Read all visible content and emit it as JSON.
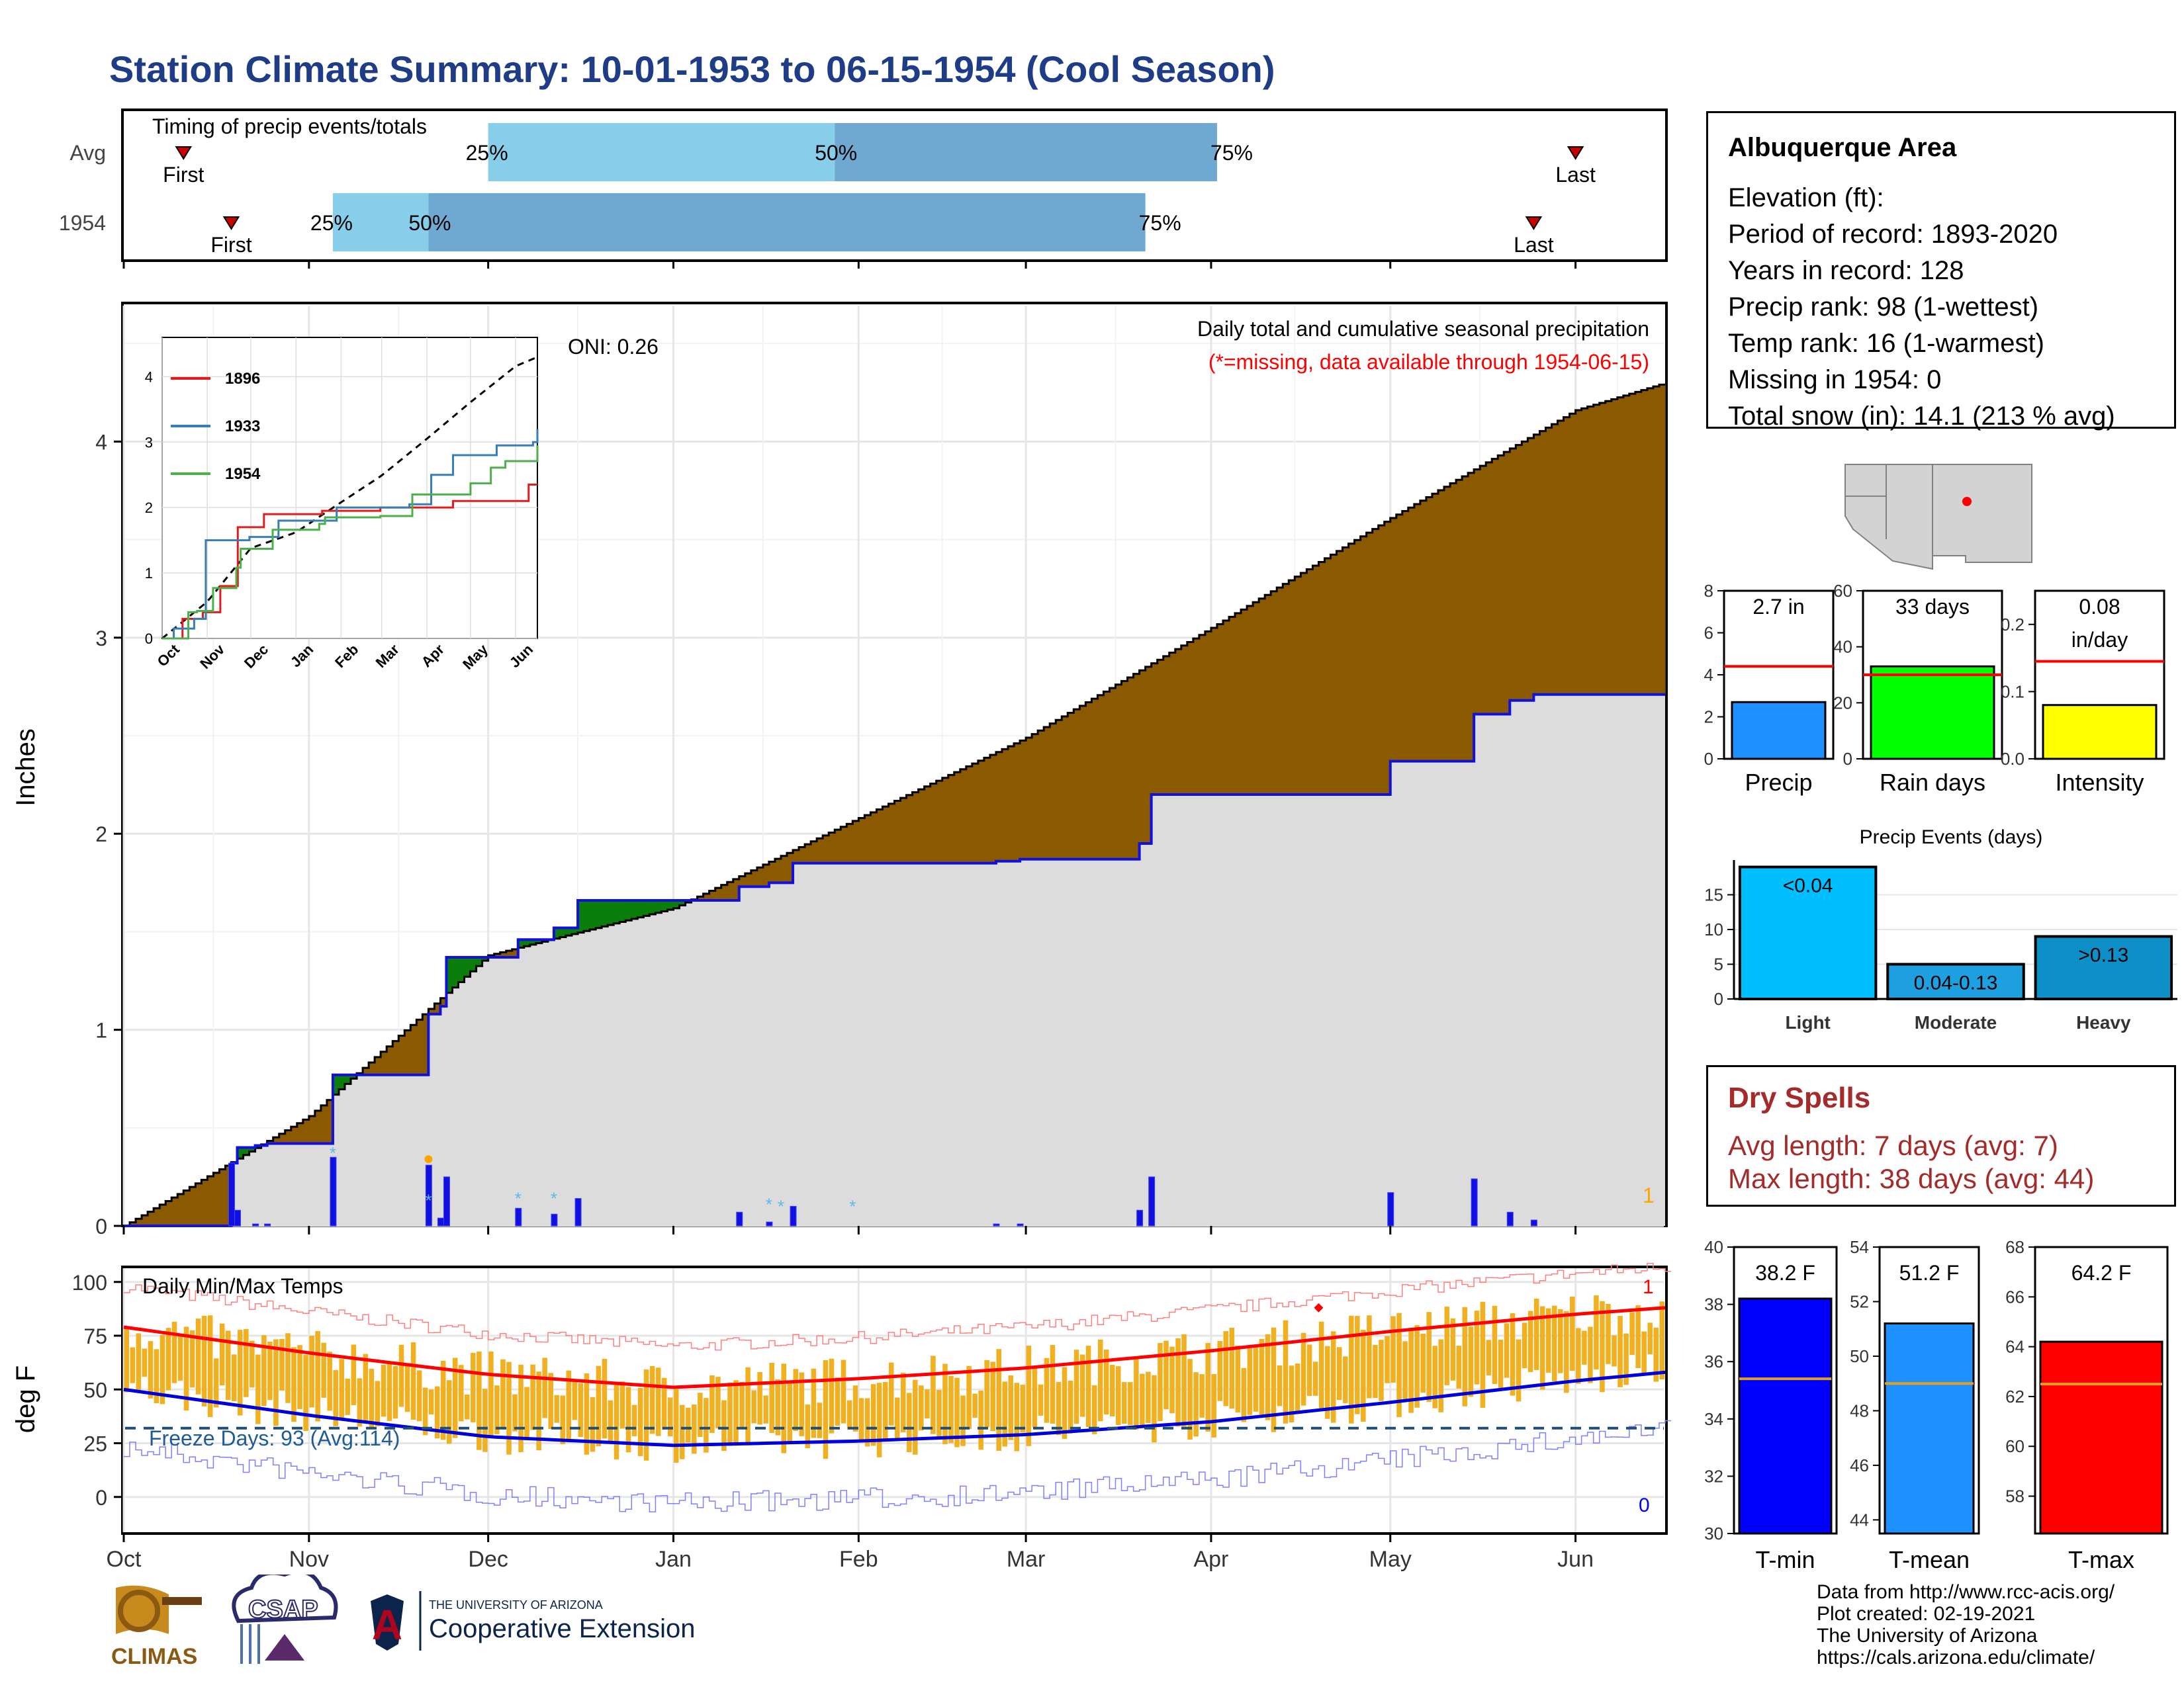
{
  "title": "Station Climate Summary: 10-01-1953 to 06-15-1954 (Cool Season)",
  "timing": {
    "title": "Timing of precip events/totals",
    "rows": [
      {
        "label": "Avg",
        "first": "First",
        "last": "Last",
        "p25": "25%",
        "p50": "50%",
        "p75": "75%",
        "first_day": 10,
        "p25_day": 61,
        "p50_day": 119,
        "p75_day": 183,
        "last_day": 243
      },
      {
        "label": "1954",
        "first": "First",
        "last": "Last",
        "p25": "25%",
        "p50": "50%",
        "p75": "75%",
        "first_day": 18,
        "p25_day": 35,
        "p50_day": 51,
        "p75_day": 171,
        "last_day": 236
      }
    ]
  },
  "precip_chart": {
    "ylabel": "Inches",
    "yticks": [
      "0",
      "1",
      "2",
      "3",
      "4"
    ],
    "caption1": "Daily total and cumulative seasonal precipitation",
    "caption2": "(*=missing, data available through 1954-06-15)",
    "oni": "ONI: 0.26",
    "rank_marker": "1"
  },
  "inset": {
    "yticks": [
      "0",
      "1",
      "2",
      "3",
      "4"
    ],
    "months": [
      "Oct",
      "Nov",
      "Dec",
      "Jan",
      "Feb",
      "Mar",
      "Apr",
      "May",
      "Jun"
    ],
    "legend": [
      {
        "name": "1896",
        "color": "#e41a1c"
      },
      {
        "name": "1933",
        "color": "#377eb8"
      },
      {
        "name": "1954",
        "color": "#4daf4a"
      }
    ]
  },
  "temp_chart": {
    "ylabel": "deg F",
    "title": "Daily Min/Max Temps",
    "yticks": [
      "0",
      "25",
      "50",
      "75",
      "100"
    ],
    "freeze": "Freeze Days: 93 (Avg:114)",
    "max_rank": "1",
    "min_rank": "0"
  },
  "x_months": [
    "Oct",
    "Nov",
    "Dec",
    "Jan",
    "Feb",
    "Mar",
    "Apr",
    "May",
    "Jun"
  ],
  "station": {
    "name": "Albuquerque Area",
    "lines": [
      "Elevation (ft):",
      "Period of record: 1893-2020",
      "Years in record: 128",
      "Precip rank: 98 (1-wettest)",
      "Temp rank: 16 (1-warmest)",
      "Missing in 1954: 0",
      "Total snow (in): 14.1 (213 % avg)"
    ]
  },
  "bars": {
    "precip": {
      "label": "Precip",
      "value_label": "2.7 in",
      "value": 2.7,
      "avg": 4.4,
      "ymax": 8,
      "ticks": [
        "0",
        "2",
        "4",
        "6",
        "8"
      ],
      "color": "#1e90ff"
    },
    "raindays": {
      "label": "Rain days",
      "value_label": "33 days",
      "value": 33,
      "avg": 30,
      "ymax": 60,
      "ticks": [
        "0",
        "20",
        "40",
        "60"
      ],
      "color": "#00ff00"
    },
    "intensity": {
      "label": "Intensity",
      "value_label": "0.08\nin/day",
      "value": 0.08,
      "avg": 0.145,
      "ymax": 0.25,
      "ticks": [
        "0.0",
        "0.1",
        "0.2"
      ],
      "color": "#ffff00"
    }
  },
  "events": {
    "title": "Precip Events (days)",
    "ticks": [
      "0",
      "5",
      "10",
      "15"
    ],
    "items": [
      {
        "label": "Light",
        "value": 19,
        "text": "<0.04",
        "color": "#00bfff"
      },
      {
        "label": "Moderate",
        "value": 5,
        "text": "0.04-0.13",
        "color": "#1e9fe0"
      },
      {
        "label": "Heavy",
        "value": 9,
        "text": ">0.13",
        "color": "#0f8fc8"
      }
    ]
  },
  "dry": {
    "title": "Dry Spells",
    "avg": "Avg length: 7 days (avg: 7)",
    "max": "Max length: 38 days (avg: 44)"
  },
  "temp_bars": [
    {
      "label": "T-min",
      "value_label": "38.2 F",
      "value": 38.2,
      "avg": 35.4,
      "ymin": 30,
      "ymax": 40,
      "ticks": [
        "30",
        "32",
        "34",
        "36",
        "38",
        "40"
      ],
      "color": "#0000ff"
    },
    {
      "label": "T-mean",
      "value_label": "51.2 F",
      "value": 51.2,
      "avg": 49,
      "ymin": 43.5,
      "ymax": 54,
      "ticks": [
        "44",
        "46",
        "48",
        "50",
        "52",
        "54"
      ],
      "color": "#1e90ff"
    },
    {
      "label": "T-max",
      "value_label": "64.2 F",
      "value": 64.2,
      "avg": 62.5,
      "ymin": 56.5,
      "ymax": 68,
      "ticks": [
        "58",
        "60",
        "62",
        "64",
        "66",
        "68"
      ],
      "color": "#ff0000"
    }
  ],
  "logos": {
    "climas": "CLIMAS",
    "csap": "CSAP",
    "ua_small": "THE UNIVERSITY OF ARIZONA",
    "ua_big": "Cooperative Extension"
  },
  "credits": [
    "Data from http://www.rcc-acis.org/",
    "Plot created: 02-19-2021",
    "The University of Arizona",
    "https://cals.arizona.edu/climate/"
  ],
  "chart_data": [
    {
      "type": "line",
      "title": "Daily total and cumulative seasonal precipitation",
      "ylabel": "Inches",
      "ylim": [
        0,
        4.7
      ],
      "x": [
        "1953-10-01",
        "1953-11-01",
        "1953-12-01",
        "1954-01-01",
        "1954-02-01",
        "1954-03-01",
        "1954-04-01",
        "1954-05-01",
        "1954-06-01",
        "1954-06-15"
      ],
      "series": [
        {
          "values": [
            0,
            0.56,
            1.38,
            1.62,
            2.08,
            2.49,
            3.05,
            3.61,
            4.16,
            4.3
          ]
        },
        {
          "values": [
            0,
            0.4,
            1.37,
            1.66,
            1.76,
            1.86,
            2.2,
            2.37,
            2.71,
            2.71
          ]
        }
      ]
    },
    {
      "type": "line",
      "title": "Daily Min/Max Temps",
      "ylabel": "deg F",
      "ylim": [
        -17,
        107
      ],
      "x": [
        "1953-10-01",
        "1953-11-01",
        "1953-12-01",
        "1954-01-01",
        "1954-02-01",
        "1954-03-01",
        "1954-04-01",
        "1954-05-01",
        "1954-06-01",
        "1954-06-15"
      ],
      "series": [
        {
          "values": [
            79,
            67,
            57,
            51,
            55,
            60,
            68,
            77,
            85,
            88
          ]
        },
        {
          "values": [
            50,
            38,
            28,
            24,
            26,
            29,
            35,
            44,
            54,
            58
          ]
        }
      ]
    }
  ]
}
